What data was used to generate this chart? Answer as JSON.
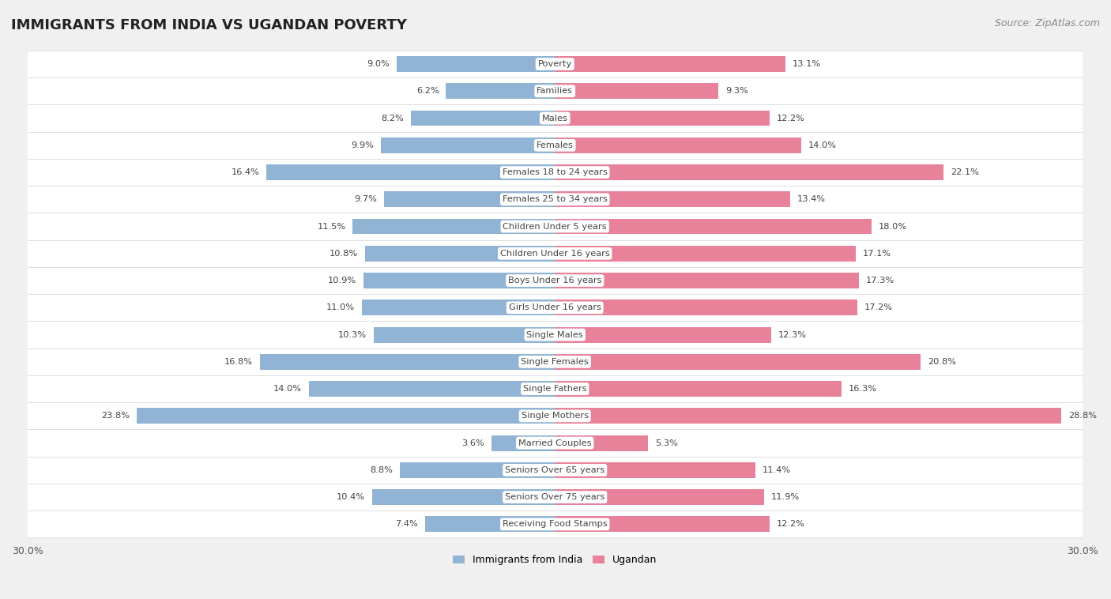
{
  "title": "IMMIGRANTS FROM INDIA VS UGANDAN POVERTY",
  "source": "Source: ZipAtlas.com",
  "categories": [
    "Poverty",
    "Families",
    "Males",
    "Females",
    "Females 18 to 24 years",
    "Females 25 to 34 years",
    "Children Under 5 years",
    "Children Under 16 years",
    "Boys Under 16 years",
    "Girls Under 16 years",
    "Single Males",
    "Single Females",
    "Single Fathers",
    "Single Mothers",
    "Married Couples",
    "Seniors Over 65 years",
    "Seniors Over 75 years",
    "Receiving Food Stamps"
  ],
  "india_values": [
    9.0,
    6.2,
    8.2,
    9.9,
    16.4,
    9.7,
    11.5,
    10.8,
    10.9,
    11.0,
    10.3,
    16.8,
    14.0,
    23.8,
    3.6,
    8.8,
    10.4,
    7.4
  ],
  "ugandan_values": [
    13.1,
    9.3,
    12.2,
    14.0,
    22.1,
    13.4,
    18.0,
    17.1,
    17.3,
    17.2,
    12.3,
    20.8,
    16.3,
    28.8,
    5.3,
    11.4,
    11.9,
    12.2
  ],
  "india_color": "#92b4d4",
  "ugandan_color": "#e8829a",
  "background_color": "#f0f0f0",
  "row_light": "#ffffff",
  "row_dark": "#e8e8e8",
  "max_value": 30.0,
  "bar_height": 0.58,
  "legend_india": "Immigrants from India",
  "legend_ugandan": "Ugandan",
  "title_fontsize": 13,
  "source_fontsize": 9,
  "label_fontsize": 8.2,
  "value_fontsize": 8.2
}
